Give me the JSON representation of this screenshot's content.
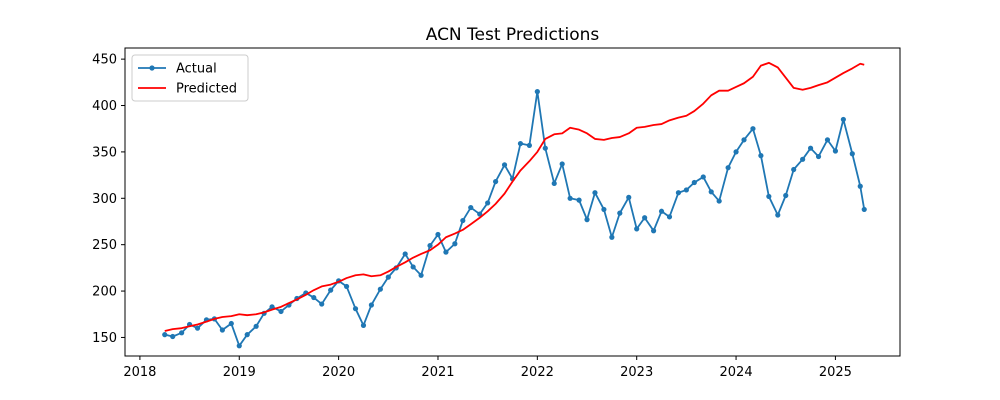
{
  "chart_data": {
    "type": "line",
    "title": "ACN Test Predictions",
    "xlabel": "",
    "ylabel": "",
    "xlim": [
      2017.85,
      2025.65
    ],
    "ylim": [
      130,
      462
    ],
    "x_ticks": [
      2018,
      2019,
      2020,
      2021,
      2022,
      2023,
      2024,
      2025
    ],
    "x_tick_labels": [
      "2018",
      "2019",
      "2020",
      "2021",
      "2022",
      "2023",
      "2024",
      "2025"
    ],
    "y_ticks": [
      150,
      200,
      250,
      300,
      350,
      400,
      450
    ],
    "y_tick_labels": [
      "150",
      "200",
      "250",
      "300",
      "350",
      "400",
      "450"
    ],
    "grid": false,
    "legend_position": "upper left",
    "series": [
      {
        "name": "Actual",
        "color": "#1f77b4",
        "marker": "circle",
        "points": [
          [
            2018.25,
            153
          ],
          [
            2018.33,
            151
          ],
          [
            2018.42,
            155
          ],
          [
            2018.5,
            164
          ],
          [
            2018.58,
            160
          ],
          [
            2018.67,
            169
          ],
          [
            2018.75,
            170
          ],
          [
            2018.83,
            158
          ],
          [
            2018.92,
            165
          ],
          [
            2019.0,
            141
          ],
          [
            2019.08,
            153
          ],
          [
            2019.17,
            162
          ],
          [
            2019.25,
            176
          ],
          [
            2019.33,
            183
          ],
          [
            2019.42,
            178
          ],
          [
            2019.5,
            185
          ],
          [
            2019.58,
            192
          ],
          [
            2019.67,
            198
          ],
          [
            2019.75,
            193
          ],
          [
            2019.83,
            186
          ],
          [
            2019.92,
            201
          ],
          [
            2020.0,
            211
          ],
          [
            2020.08,
            205
          ],
          [
            2020.17,
            181
          ],
          [
            2020.25,
            163
          ],
          [
            2020.33,
            185
          ],
          [
            2020.42,
            202
          ],
          [
            2020.5,
            215
          ],
          [
            2020.58,
            225
          ],
          [
            2020.67,
            240
          ],
          [
            2020.75,
            226
          ],
          [
            2020.83,
            217
          ],
          [
            2020.92,
            249
          ],
          [
            2021.0,
            261
          ],
          [
            2021.08,
            242
          ],
          [
            2021.17,
            251
          ],
          [
            2021.25,
            276
          ],
          [
            2021.33,
            290
          ],
          [
            2021.42,
            283
          ],
          [
            2021.5,
            295
          ],
          [
            2021.58,
            318
          ],
          [
            2021.67,
            336
          ],
          [
            2021.75,
            321
          ],
          [
            2021.83,
            359
          ],
          [
            2021.92,
            357
          ],
          [
            2022.0,
            415
          ],
          [
            2022.08,
            354
          ],
          [
            2022.17,
            316
          ],
          [
            2022.25,
            337
          ],
          [
            2022.33,
            300
          ],
          [
            2022.42,
            298
          ],
          [
            2022.5,
            277
          ],
          [
            2022.58,
            306
          ],
          [
            2022.67,
            288
          ],
          [
            2022.75,
            258
          ],
          [
            2022.83,
            284
          ],
          [
            2022.92,
            301
          ],
          [
            2023.0,
            267
          ],
          [
            2023.08,
            279
          ],
          [
            2023.17,
            265
          ],
          [
            2023.25,
            286
          ],
          [
            2023.33,
            280
          ],
          [
            2023.42,
            306
          ],
          [
            2023.5,
            309
          ],
          [
            2023.58,
            317
          ],
          [
            2023.67,
            323
          ],
          [
            2023.75,
            307
          ],
          [
            2023.83,
            297
          ],
          [
            2023.92,
            333
          ],
          [
            2024.0,
            350
          ],
          [
            2024.08,
            363
          ],
          [
            2024.17,
            375
          ],
          [
            2024.25,
            346
          ],
          [
            2024.33,
            302
          ],
          [
            2024.42,
            282
          ],
          [
            2024.5,
            303
          ],
          [
            2024.58,
            331
          ],
          [
            2024.67,
            342
          ],
          [
            2024.75,
            354
          ],
          [
            2024.83,
            345
          ],
          [
            2024.92,
            363
          ],
          [
            2025.0,
            351
          ],
          [
            2025.08,
            385
          ],
          [
            2025.17,
            348
          ],
          [
            2025.25,
            313
          ],
          [
            2025.29,
            288
          ]
        ]
      },
      {
        "name": "Predicted",
        "color": "#ff0000",
        "marker": "none",
        "points": [
          [
            2018.25,
            157
          ],
          [
            2018.33,
            159
          ],
          [
            2018.42,
            160
          ],
          [
            2018.5,
            162
          ],
          [
            2018.58,
            164
          ],
          [
            2018.67,
            167
          ],
          [
            2018.75,
            170
          ],
          [
            2018.83,
            172
          ],
          [
            2018.92,
            173
          ],
          [
            2019.0,
            175
          ],
          [
            2019.08,
            174
          ],
          [
            2019.17,
            175
          ],
          [
            2019.25,
            177
          ],
          [
            2019.33,
            180
          ],
          [
            2019.42,
            183
          ],
          [
            2019.5,
            187
          ],
          [
            2019.58,
            191
          ],
          [
            2019.67,
            196
          ],
          [
            2019.75,
            201
          ],
          [
            2019.83,
            205
          ],
          [
            2019.92,
            207
          ],
          [
            2020.0,
            210
          ],
          [
            2020.08,
            214
          ],
          [
            2020.17,
            217
          ],
          [
            2020.25,
            218
          ],
          [
            2020.33,
            216
          ],
          [
            2020.42,
            217
          ],
          [
            2020.5,
            221
          ],
          [
            2020.58,
            226
          ],
          [
            2020.67,
            231
          ],
          [
            2020.75,
            236
          ],
          [
            2020.83,
            240
          ],
          [
            2020.92,
            244
          ],
          [
            2021.0,
            250
          ],
          [
            2021.08,
            258
          ],
          [
            2021.17,
            262
          ],
          [
            2021.25,
            266
          ],
          [
            2021.33,
            272
          ],
          [
            2021.42,
            279
          ],
          [
            2021.5,
            286
          ],
          [
            2021.58,
            294
          ],
          [
            2021.67,
            305
          ],
          [
            2021.75,
            318
          ],
          [
            2021.83,
            330
          ],
          [
            2021.92,
            340
          ],
          [
            2022.0,
            350
          ],
          [
            2022.08,
            364
          ],
          [
            2022.17,
            369
          ],
          [
            2022.25,
            370
          ],
          [
            2022.33,
            376
          ],
          [
            2022.42,
            374
          ],
          [
            2022.5,
            370
          ],
          [
            2022.58,
            364
          ],
          [
            2022.67,
            363
          ],
          [
            2022.75,
            365
          ],
          [
            2022.83,
            366
          ],
          [
            2022.92,
            370
          ],
          [
            2023.0,
            376
          ],
          [
            2023.08,
            377
          ],
          [
            2023.17,
            379
          ],
          [
            2023.25,
            380
          ],
          [
            2023.33,
            384
          ],
          [
            2023.42,
            387
          ],
          [
            2023.5,
            389
          ],
          [
            2023.58,
            394
          ],
          [
            2023.67,
            402
          ],
          [
            2023.75,
            411
          ],
          [
            2023.83,
            416
          ],
          [
            2023.92,
            416
          ],
          [
            2024.0,
            420
          ],
          [
            2024.08,
            424
          ],
          [
            2024.17,
            431
          ],
          [
            2024.25,
            443
          ],
          [
            2024.33,
            446
          ],
          [
            2024.42,
            441
          ],
          [
            2024.5,
            430
          ],
          [
            2024.58,
            419
          ],
          [
            2024.67,
            417
          ],
          [
            2024.75,
            419
          ],
          [
            2024.83,
            422
          ],
          [
            2024.92,
            425
          ],
          [
            2025.0,
            430
          ],
          [
            2025.08,
            435
          ],
          [
            2025.17,
            440
          ],
          [
            2025.25,
            445
          ],
          [
            2025.29,
            444
          ]
        ]
      }
    ]
  }
}
